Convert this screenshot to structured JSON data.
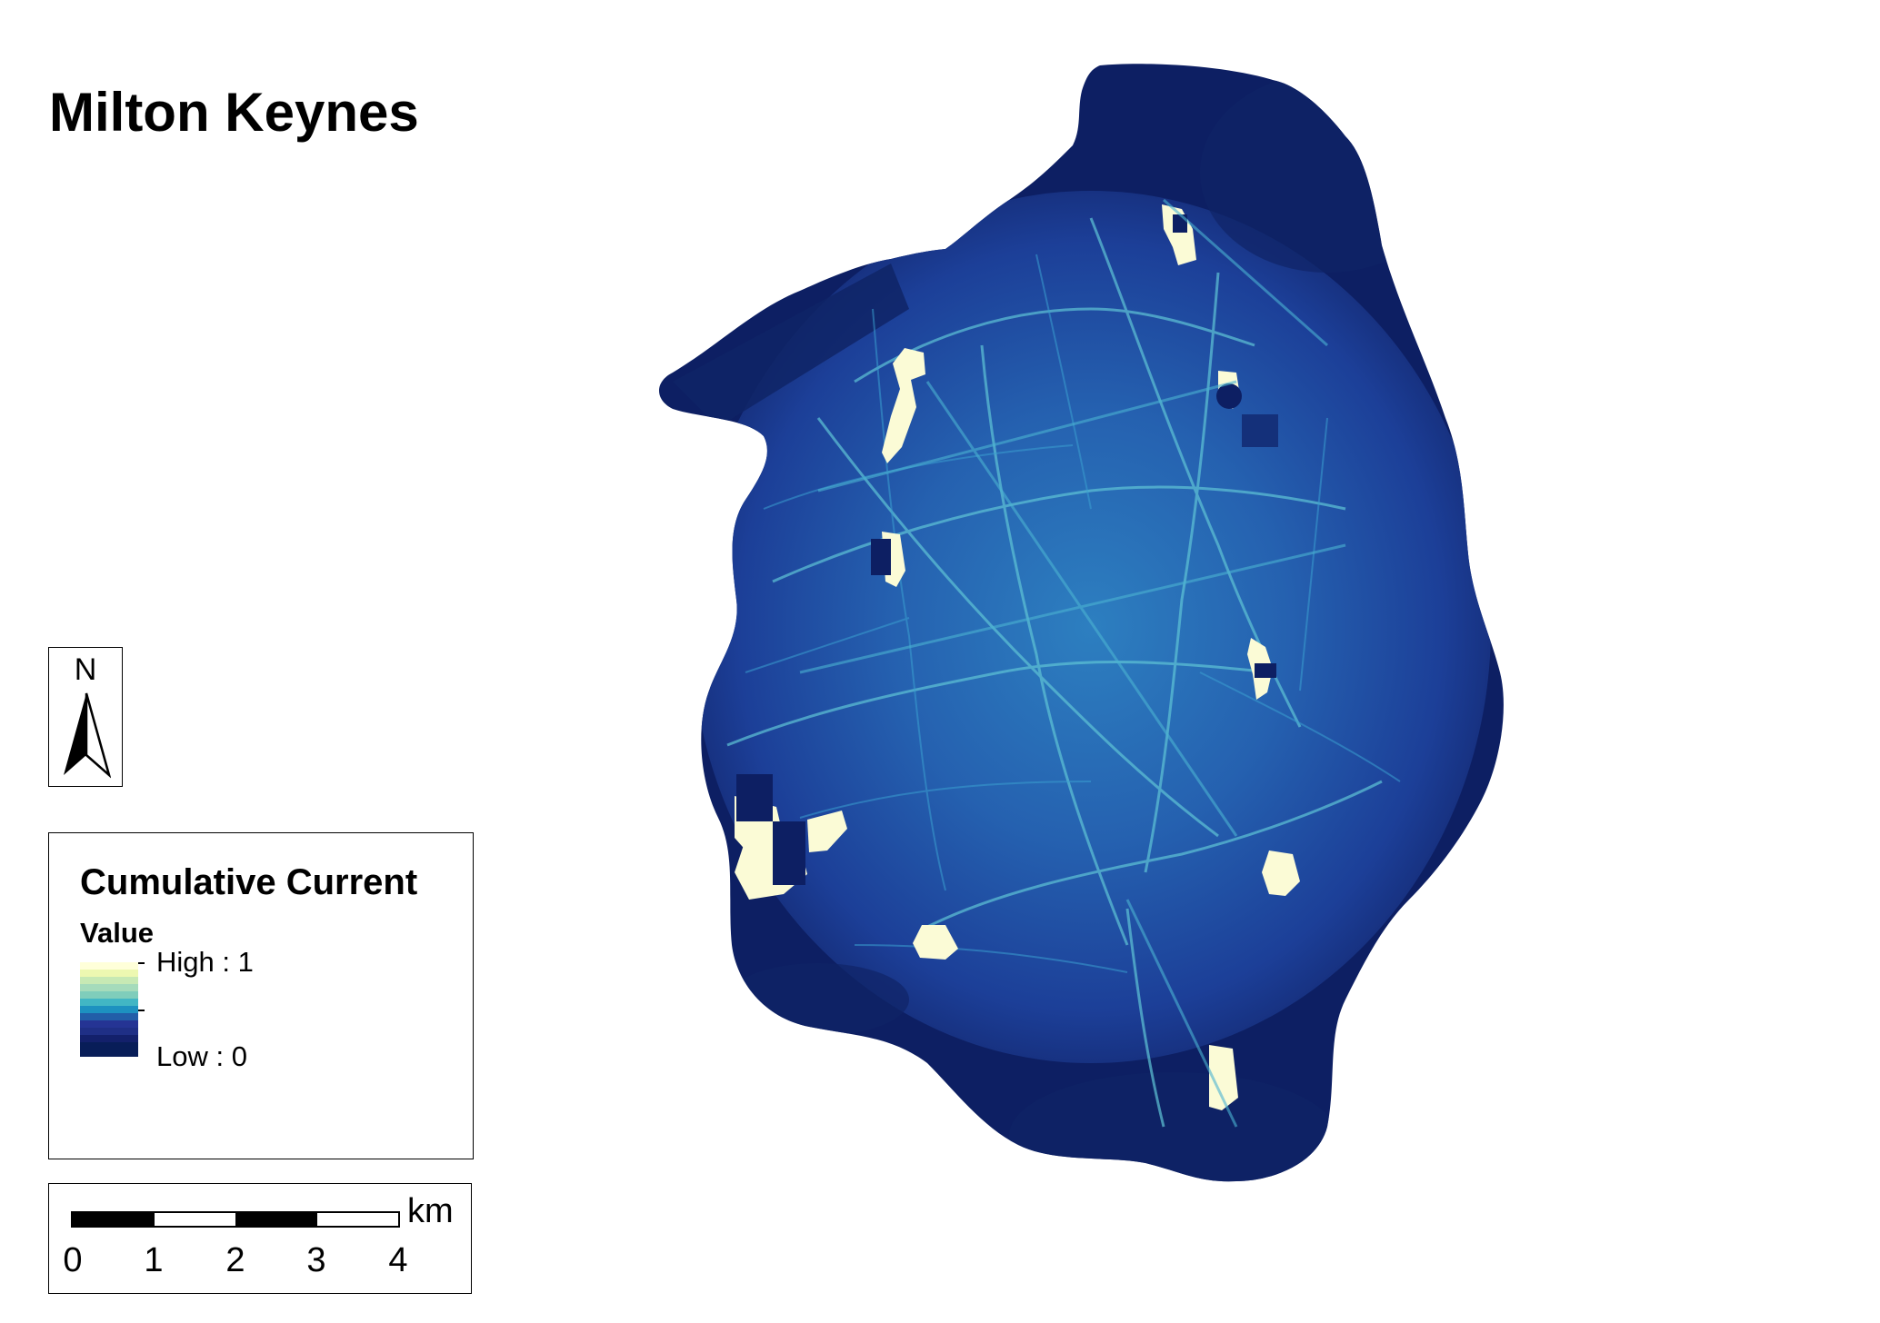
{
  "map": {
    "title": "Milton Keynes"
  },
  "north_arrow": {
    "label": "N"
  },
  "legend": {
    "title": "Cumulative Current",
    "subtitle": "Value",
    "high_label": "High : 1",
    "low_label": "Low : 0",
    "ramp_colors": [
      "#ffffd9",
      "#edf8b1",
      "#c7e9b4",
      "#a5dbbb",
      "#7fcdbb",
      "#41b6c4",
      "#1d91c0",
      "#225ea8",
      "#253494",
      "#1f2f86",
      "#13206b",
      "#081d58",
      "#081d58"
    ]
  },
  "scale_bar": {
    "unit": "km",
    "labels": [
      "0",
      "1",
      "2",
      "3",
      "4"
    ]
  }
}
